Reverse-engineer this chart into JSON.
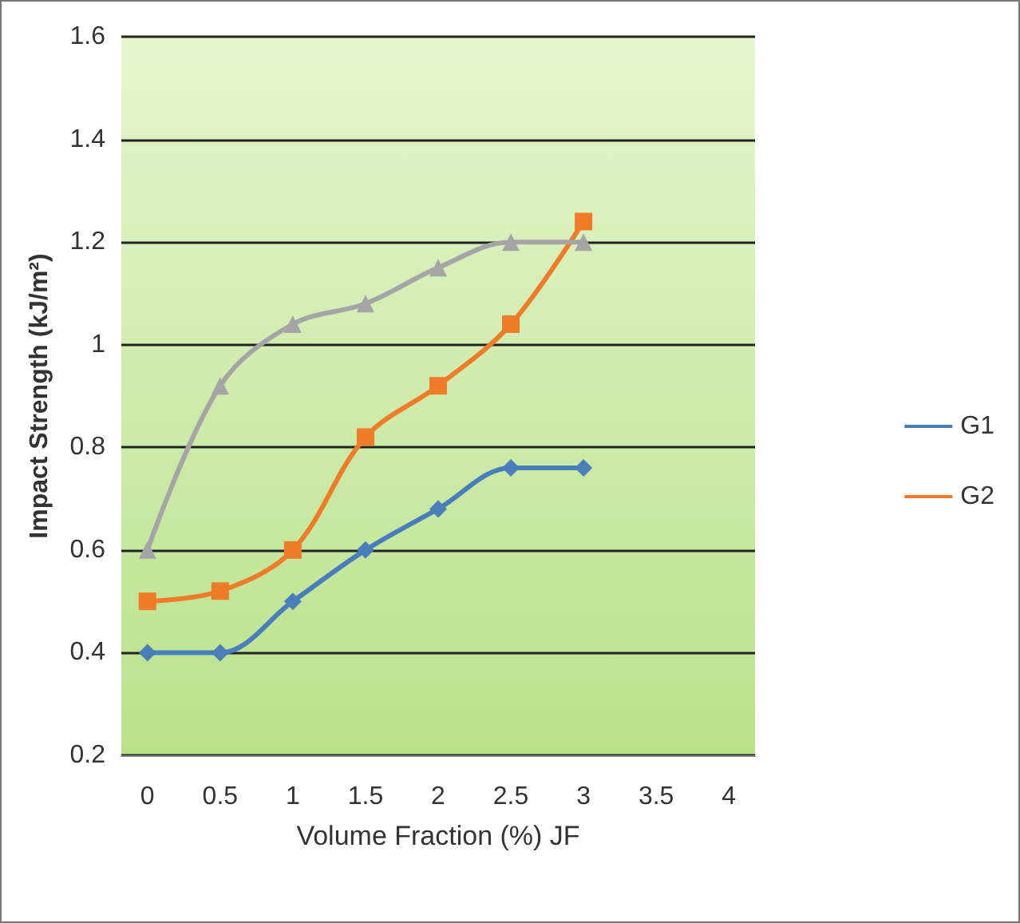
{
  "chart_data": {
    "type": "line",
    "xlabel": "Volume Fraction (%) JF",
    "ylabel": "Impact Strength (kJ/m²)",
    "x": [
      0,
      0.5,
      1,
      1.5,
      2,
      2.5,
      3
    ],
    "series": [
      {
        "name": "G1",
        "color": "#4a7ebb",
        "marker": "diamond",
        "values": [
          0.4,
          0.4,
          0.5,
          0.6,
          0.68,
          0.76,
          0.76
        ]
      },
      {
        "name": "G2",
        "color": "#f07c2a",
        "marker": "square",
        "values": [
          0.5,
          0.52,
          0.6,
          0.82,
          0.92,
          1.04,
          1.24
        ]
      },
      {
        "color": "#a5a5a5",
        "marker": "triangle",
        "values": [
          0.6,
          0.92,
          1.04,
          1.08,
          1.15,
          1.2,
          1.2
        ]
      }
    ],
    "xlim": [
      -0.18,
      4.18
    ],
    "xticks": [
      0,
      0.5,
      1,
      1.5,
      2,
      2.5,
      3,
      3.5,
      4
    ],
    "ylim": [
      0.2,
      1.6
    ],
    "yticks": [
      0.2,
      0.4,
      0.6,
      0.8,
      1,
      1.2,
      1.4,
      1.6
    ],
    "grid": "y",
    "legend": "right"
  }
}
